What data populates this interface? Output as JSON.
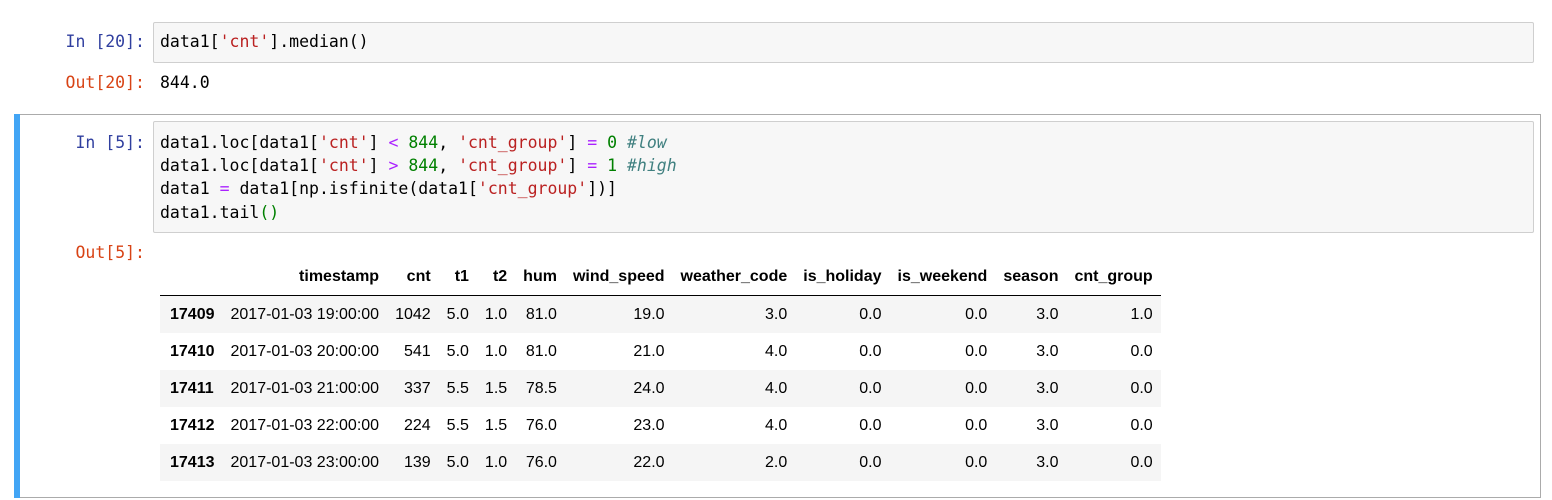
{
  "cell1": {
    "in_prompt": "In [20]:",
    "code": "data1['cnt'].median()",
    "out_prompt": "Out[20]:",
    "output": "844.0"
  },
  "cell2": {
    "in_prompt": "In [5]:",
    "code_lines": [
      "data1.loc[data1['cnt'] < 844, 'cnt_group'] = 0 #low",
      "data1.loc[data1['cnt'] > 844, 'cnt_group'] = 1 #high",
      "data1 = data1[np.isfinite(data1['cnt_group'])]",
      "data1.tail()"
    ],
    "out_prompt": "Out[5]:",
    "table": {
      "columns": [
        "",
        "timestamp",
        "cnt",
        "t1",
        "t2",
        "hum",
        "wind_speed",
        "weather_code",
        "is_holiday",
        "is_weekend",
        "season",
        "cnt_group"
      ],
      "rows": [
        [
          "17409",
          "2017-01-03 19:00:00",
          "1042",
          "5.0",
          "1.0",
          "81.0",
          "19.0",
          "3.0",
          "0.0",
          "0.0",
          "3.0",
          "1.0"
        ],
        [
          "17410",
          "2017-01-03 20:00:00",
          "541",
          "5.0",
          "1.0",
          "81.0",
          "21.0",
          "4.0",
          "0.0",
          "0.0",
          "3.0",
          "0.0"
        ],
        [
          "17411",
          "2017-01-03 21:00:00",
          "337",
          "5.5",
          "1.5",
          "78.5",
          "24.0",
          "4.0",
          "0.0",
          "0.0",
          "3.0",
          "0.0"
        ],
        [
          "17412",
          "2017-01-03 22:00:00",
          "224",
          "5.5",
          "1.5",
          "76.0",
          "23.0",
          "4.0",
          "0.0",
          "0.0",
          "3.0",
          "0.0"
        ],
        [
          "17413",
          "2017-01-03 23:00:00",
          "139",
          "5.0",
          "1.0",
          "76.0",
          "22.0",
          "2.0",
          "0.0",
          "0.0",
          "3.0",
          "0.0"
        ]
      ]
    }
  },
  "colors": {
    "in_prompt": "#303f9f",
    "out_prompt": "#d84315",
    "selected_bar": "#42a5f5",
    "string": "#ba2121",
    "number": "#008000",
    "operator": "#aa22ff",
    "comment": "#408080"
  }
}
